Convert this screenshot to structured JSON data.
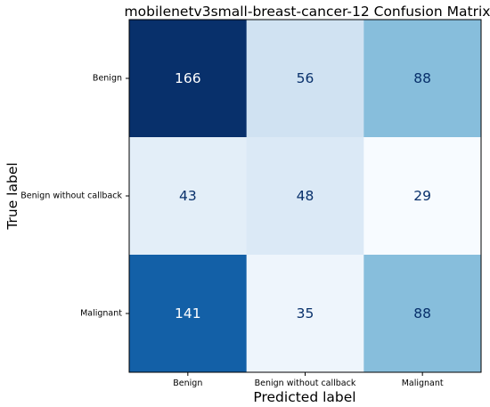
{
  "chart_data": {
    "type": "heatmap",
    "title": "mobilenetv3small-breast-cancer-12 Confusion Matrix",
    "xlabel": "Predicted label",
    "ylabel": "True label",
    "x_categories": [
      "Benign",
      "Benign without callback",
      "Malignant"
    ],
    "y_categories": [
      "Benign",
      "Benign without callback",
      "Malignant"
    ],
    "matrix": [
      [
        166,
        56,
        88
      ],
      [
        43,
        48,
        29
      ],
      [
        141,
        35,
        88
      ]
    ],
    "value_range": [
      29,
      166
    ],
    "colormap": "Blues",
    "colors": {
      "high": "#08306b",
      "low": "#f7fbff",
      "text_light": "#ffffff",
      "text_dark": "#08306b"
    }
  }
}
